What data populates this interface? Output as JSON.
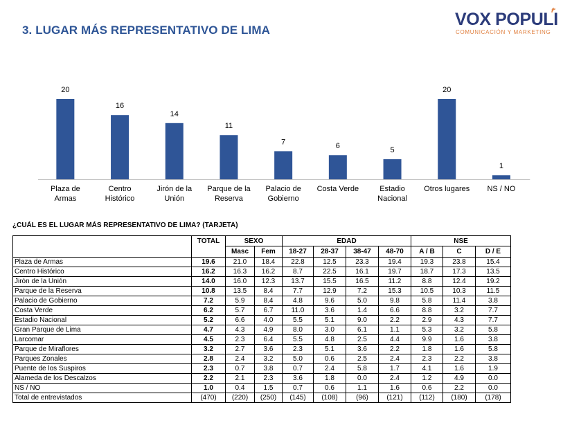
{
  "header": {
    "title": "3. LUGAR MÁS REPRESENTATIVO DE LIMA",
    "logo_main": "VOX POPULI",
    "logo_sub": "COMUNICACIÓN Y MARKETING"
  },
  "colors": {
    "bar": "#2f5597",
    "title": "#2e5596",
    "logo": "#2b3b7a",
    "logo_accent": "#e08040"
  },
  "chart_data": {
    "type": "bar",
    "categories": [
      [
        "Plaza de",
        "Armas"
      ],
      [
        "Centro",
        "Histórico"
      ],
      [
        "Jirón de la",
        "Unión"
      ],
      [
        "Parque de la",
        "Reserva"
      ],
      [
        "Palacio de",
        "Gobierno"
      ],
      [
        "Costa Verde"
      ],
      [
        "Estadio",
        "Nacional"
      ],
      [
        "Otros lugares"
      ],
      [
        "NS / NO"
      ]
    ],
    "values": [
      20,
      16,
      14,
      11,
      7,
      6,
      5,
      20,
      1
    ],
    "ylim": [
      0,
      20
    ],
    "data_labels": true,
    "grid": false
  },
  "table": {
    "title": "¿CUÁL ES EL LUGAR MÁS REPRESENTATIVO DE LIMA? (TARJETA)",
    "total_header": "TOTAL",
    "groups": [
      {
        "name": "SEXO",
        "columns": [
          "Masc",
          "Fem"
        ]
      },
      {
        "name": "EDAD",
        "columns": [
          "18-27",
          "28-37",
          "38-47",
          "48-70"
        ]
      },
      {
        "name": "NSE",
        "columns": [
          "A / B",
          "C",
          "D / E"
        ]
      }
    ],
    "rows": [
      {
        "label": "Plaza de Armas",
        "total": "19.6",
        "values": [
          "21.0",
          "18.4",
          "22.8",
          "12.5",
          "23.3",
          "19.4",
          "19.3",
          "23.8",
          "15.4"
        ]
      },
      {
        "label": "Centro Histórico",
        "total": "16.2",
        "values": [
          "16.3",
          "16.2",
          "8.7",
          "22.5",
          "16.1",
          "19.7",
          "18.7",
          "17.3",
          "13.5"
        ]
      },
      {
        "label": "Jirón de la Unión",
        "total": "14.0",
        "values": [
          "16.0",
          "12.3",
          "13.7",
          "15.5",
          "16.5",
          "11.2",
          "8.8",
          "12.4",
          "19.2"
        ]
      },
      {
        "label": "Parque de la Reserva",
        "total": "10.8",
        "values": [
          "13.5",
          "8.4",
          "7.7",
          "12.9",
          "7.2",
          "15.3",
          "10.5",
          "10.3",
          "11.5"
        ]
      },
      {
        "label": "Palacio de Gobierno",
        "total": "7.2",
        "values": [
          "5.9",
          "8.4",
          "4.8",
          "9.6",
          "5.0",
          "9.8",
          "5.8",
          "11.4",
          "3.8"
        ]
      },
      {
        "label": "Costa Verde",
        "total": "6.2",
        "values": [
          "5.7",
          "6.7",
          "11.0",
          "3.6",
          "1.4",
          "6.6",
          "8.8",
          "3.2",
          "7.7"
        ]
      },
      {
        "label": "Estadio Nacional",
        "total": "5.2",
        "values": [
          "6.6",
          "4.0",
          "5.5",
          "5.1",
          "9.0",
          "2.2",
          "2.9",
          "4.3",
          "7.7"
        ]
      },
      {
        "label": "Gran Parque de Lima",
        "total": "4.7",
        "values": [
          "4.3",
          "4.9",
          "8.0",
          "3.0",
          "6.1",
          "1.1",
          "5.3",
          "3.2",
          "5.8"
        ]
      },
      {
        "label": "Larcomar",
        "total": "4.5",
        "values": [
          "2.3",
          "6.4",
          "5.5",
          "4.8",
          "2.5",
          "4.4",
          "9.9",
          "1.6",
          "3.8"
        ]
      },
      {
        "label": "Parque de Miraflores",
        "total": "3.2",
        "values": [
          "2.7",
          "3.6",
          "2.3",
          "5.1",
          "3.6",
          "2.2",
          "1.8",
          "1.6",
          "5.8"
        ]
      },
      {
        "label": "Parques Zonales",
        "total": "2.8",
        "values": [
          "2.4",
          "3.2",
          "5.0",
          "0.6",
          "2.5",
          "2.4",
          "2.3",
          "2.2",
          "3.8"
        ]
      },
      {
        "label": "Puente de los Suspiros",
        "total": "2.3",
        "values": [
          "0.7",
          "3.8",
          "0.7",
          "2.4",
          "5.8",
          "1.7",
          "4.1",
          "1.6",
          "1.9"
        ]
      },
      {
        "label": "Alameda de los Descalzos",
        "total": "2.2",
        "values": [
          "2.1",
          "2.3",
          "3.6",
          "1.8",
          "0.0",
          "2.4",
          "1.2",
          "4.9",
          "0.0"
        ]
      },
      {
        "label": "NS / NO",
        "total": "1.0",
        "values": [
          "0.4",
          "1.5",
          "0.7",
          "0.6",
          "1.1",
          "1.6",
          "0.6",
          "2.2",
          "0.0"
        ]
      },
      {
        "label": "Total de entrevistados",
        "total": "(470)",
        "values": [
          "(220)",
          "(250)",
          "(145)",
          "(108)",
          "(96)",
          "(121)",
          "(112)",
          "(180)",
          "(178)"
        ],
        "plain_total": true
      }
    ]
  }
}
